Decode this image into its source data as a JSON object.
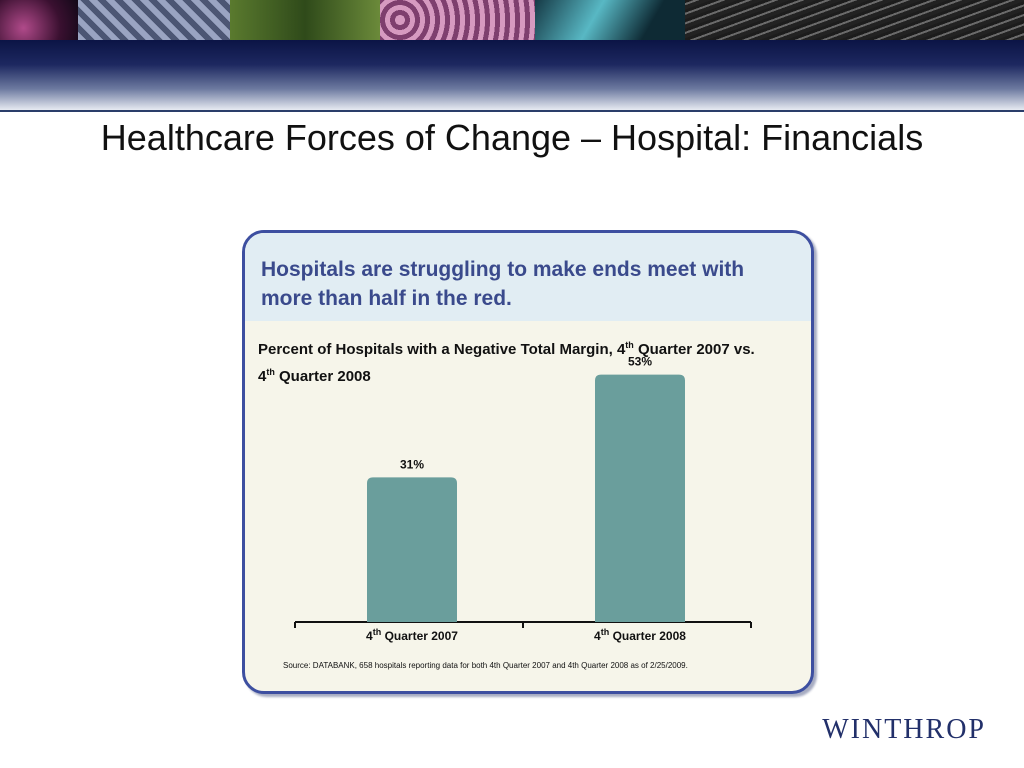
{
  "slide": {
    "title": "Healthcare Forces of Change – Hospital: Financials"
  },
  "card": {
    "headline": "Hospitals are struggling to make ends meet with more than half in the red.",
    "chart_title_parts": [
      "Percent of Hospitals with a Negative Total Margin, 4",
      "th",
      " Quarter 2007 vs. 4",
      "th",
      " Quarter 2008"
    ],
    "source": "Source:  DATABANK, 658 hospitals reporting data for both 4th  Quarter 2007 and 4th Quarter 2008 as of 2/25/2009."
  },
  "brand": {
    "logo_text": "WINTHROP"
  },
  "colors": {
    "bar": "#6a9e9c",
    "card_border": "#3d4fa0",
    "headline": "#3a4a8c"
  },
  "chart_data": {
    "type": "bar",
    "title": "Percent of Hospitals with a Negative Total Margin, 4th Quarter 2007 vs. 4th Quarter 2008",
    "categories": [
      {
        "prefix": "4",
        "sup": "th",
        "suffix": " Quarter 2007"
      },
      {
        "prefix": "4",
        "sup": "th",
        "suffix": " Quarter 2008"
      }
    ],
    "values": [
      31,
      53
    ],
    "value_labels": [
      "31%",
      "53%"
    ],
    "unit": "%",
    "ylim": [
      0,
      60
    ],
    "xlabel": "",
    "ylabel": "",
    "grid": false,
    "legend": "none"
  }
}
